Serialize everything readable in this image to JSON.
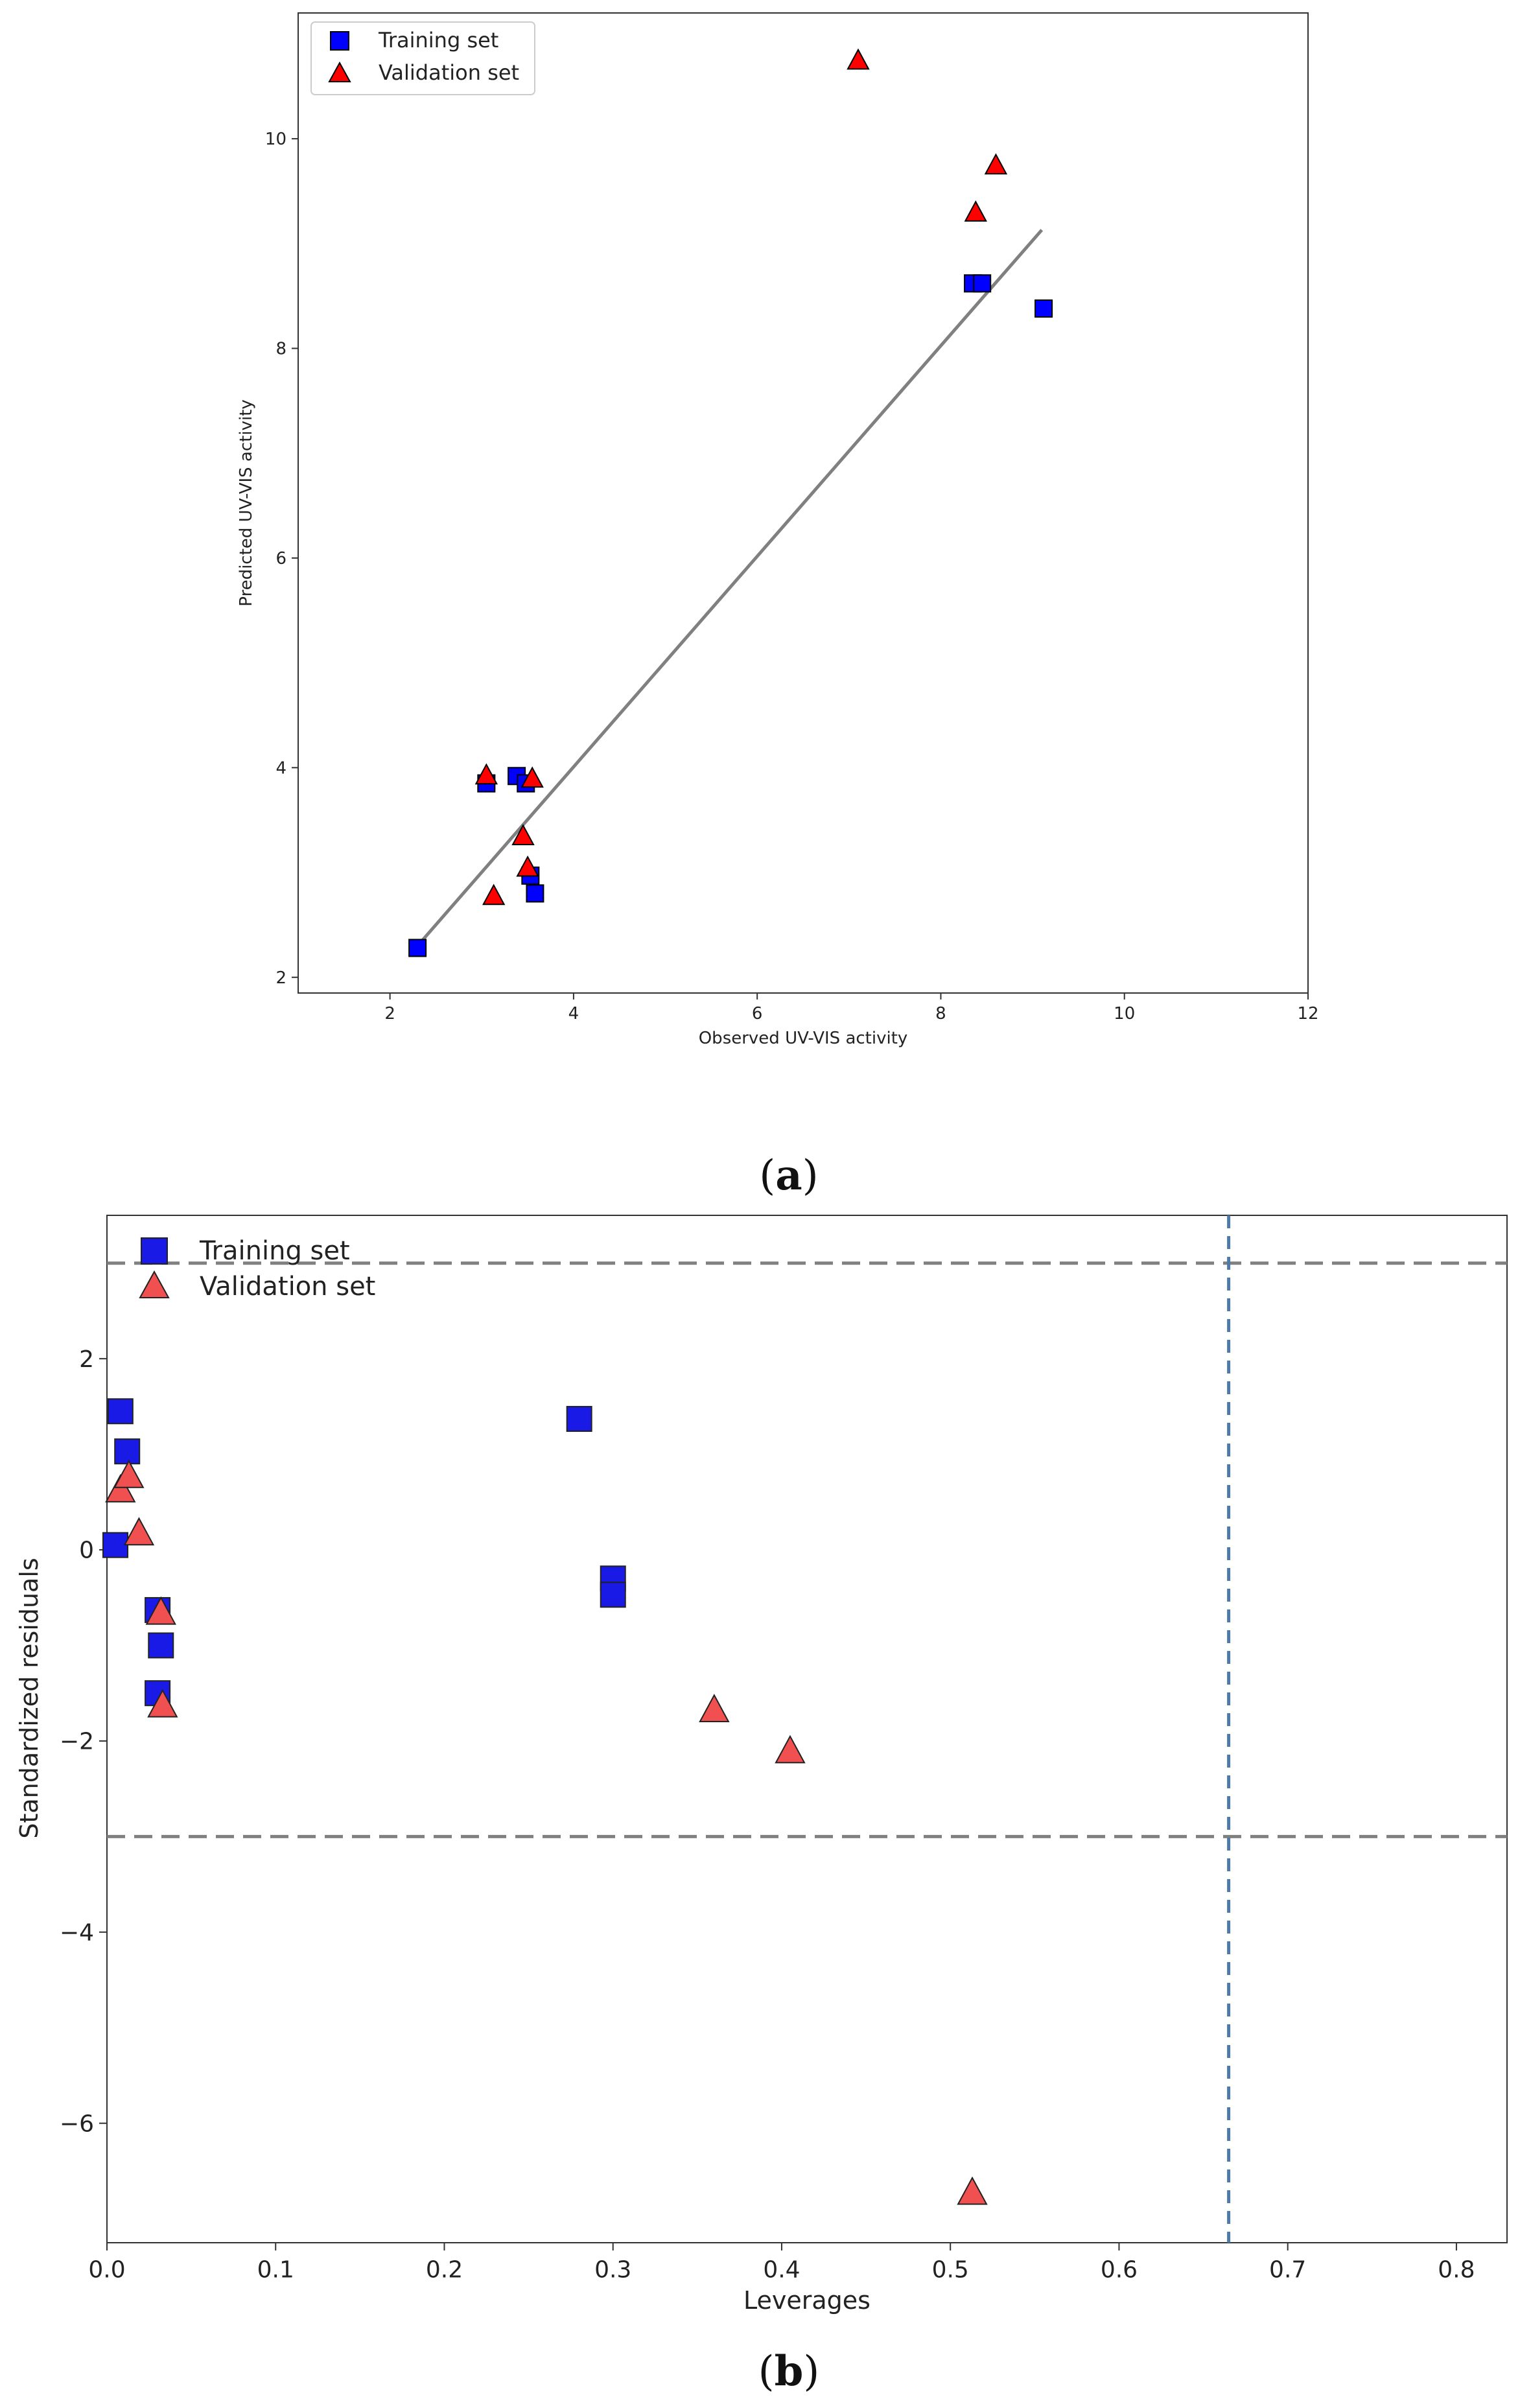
{
  "chart_data": [
    {
      "type": "scatter",
      "panel_label": "(a)",
      "caption_letter": "a",
      "xlabel": "Observed UV-VIS activity",
      "ylabel": "Predicted UV-VIS activity",
      "xlim": [
        1,
        12
      ],
      "ylim": [
        1.85,
        11.2
      ],
      "xticks": [
        2,
        4,
        6,
        8,
        10,
        12
      ],
      "yticks": [
        2,
        4,
        6,
        8,
        10
      ],
      "grid": false,
      "legend_position": "top-left",
      "fit_line": {
        "x": [
          2.3,
          9.1
        ],
        "y": [
          2.3,
          9.13
        ],
        "color": "#808080"
      },
      "series": [
        {
          "name": "Training set",
          "marker": "square",
          "color": "#0000ff",
          "points": [
            {
              "x": 2.3,
              "y": 2.28
            },
            {
              "x": 3.05,
              "y": 3.85
            },
            {
              "x": 3.38,
              "y": 3.92
            },
            {
              "x": 3.48,
              "y": 3.85
            },
            {
              "x": 3.53,
              "y": 2.97
            },
            {
              "x": 3.58,
              "y": 2.8
            },
            {
              "x": 8.35,
              "y": 8.62
            },
            {
              "x": 8.45,
              "y": 8.62
            },
            {
              "x": 9.12,
              "y": 8.38
            }
          ]
        },
        {
          "name": "Validation set",
          "marker": "triangle",
          "color": "#ff0000",
          "points": [
            {
              "x": 3.05,
              "y": 3.93
            },
            {
              "x": 3.13,
              "y": 2.78
            },
            {
              "x": 3.45,
              "y": 3.35
            },
            {
              "x": 3.5,
              "y": 3.05
            },
            {
              "x": 3.55,
              "y": 3.9
            },
            {
              "x": 7.1,
              "y": 10.75
            },
            {
              "x": 8.38,
              "y": 9.3
            },
            {
              "x": 8.6,
              "y": 9.75
            }
          ]
        }
      ]
    },
    {
      "type": "scatter",
      "panel_label": "(b)",
      "caption_letter": "b",
      "xlabel": "Leverages",
      "ylabel": "Standardized residuals",
      "xlim": [
        0.0,
        0.83
      ],
      "ylim": [
        -7.25,
        3.5
      ],
      "xticks": [
        0.0,
        0.1,
        0.2,
        0.3,
        0.4,
        0.5,
        0.6,
        0.7,
        0.8
      ],
      "xtick_labels": [
        "0.0",
        "0.1",
        "0.2",
        "0.3",
        "0.4",
        "0.5",
        "0.6",
        "0.7",
        "0.8"
      ],
      "yticks": [
        -6,
        -4,
        -2,
        0,
        2
      ],
      "ytick_labels": [
        "−6",
        "−4",
        "−2",
        "0",
        "2"
      ],
      "grid": false,
      "legend_position": "top-left",
      "hlines": [
        3,
        -3
      ],
      "vline": 0.665,
      "series": [
        {
          "name": "Training set",
          "marker": "square",
          "color": "#1a1ae6",
          "points": [
            {
              "x": 0.005,
              "y": 0.05
            },
            {
              "x": 0.008,
              "y": 1.45
            },
            {
              "x": 0.012,
              "y": 1.03
            },
            {
              "x": 0.03,
              "y": -0.63
            },
            {
              "x": 0.032,
              "y": -1.0
            },
            {
              "x": 0.03,
              "y": -1.5
            },
            {
              "x": 0.28,
              "y": 1.37
            },
            {
              "x": 0.3,
              "y": -0.3
            },
            {
              "x": 0.3,
              "y": -0.47
            }
          ]
        },
        {
          "name": "Validation set",
          "marker": "triangle",
          "color": "#f05050",
          "points": [
            {
              "x": 0.008,
              "y": 0.63
            },
            {
              "x": 0.013,
              "y": 0.78
            },
            {
              "x": 0.019,
              "y": 0.18
            },
            {
              "x": 0.032,
              "y": -0.65
            },
            {
              "x": 0.033,
              "y": -1.62
            },
            {
              "x": 0.36,
              "y": -1.67
            },
            {
              "x": 0.405,
              "y": -2.1
            },
            {
              "x": 0.513,
              "y": -6.72
            }
          ]
        }
      ]
    }
  ]
}
